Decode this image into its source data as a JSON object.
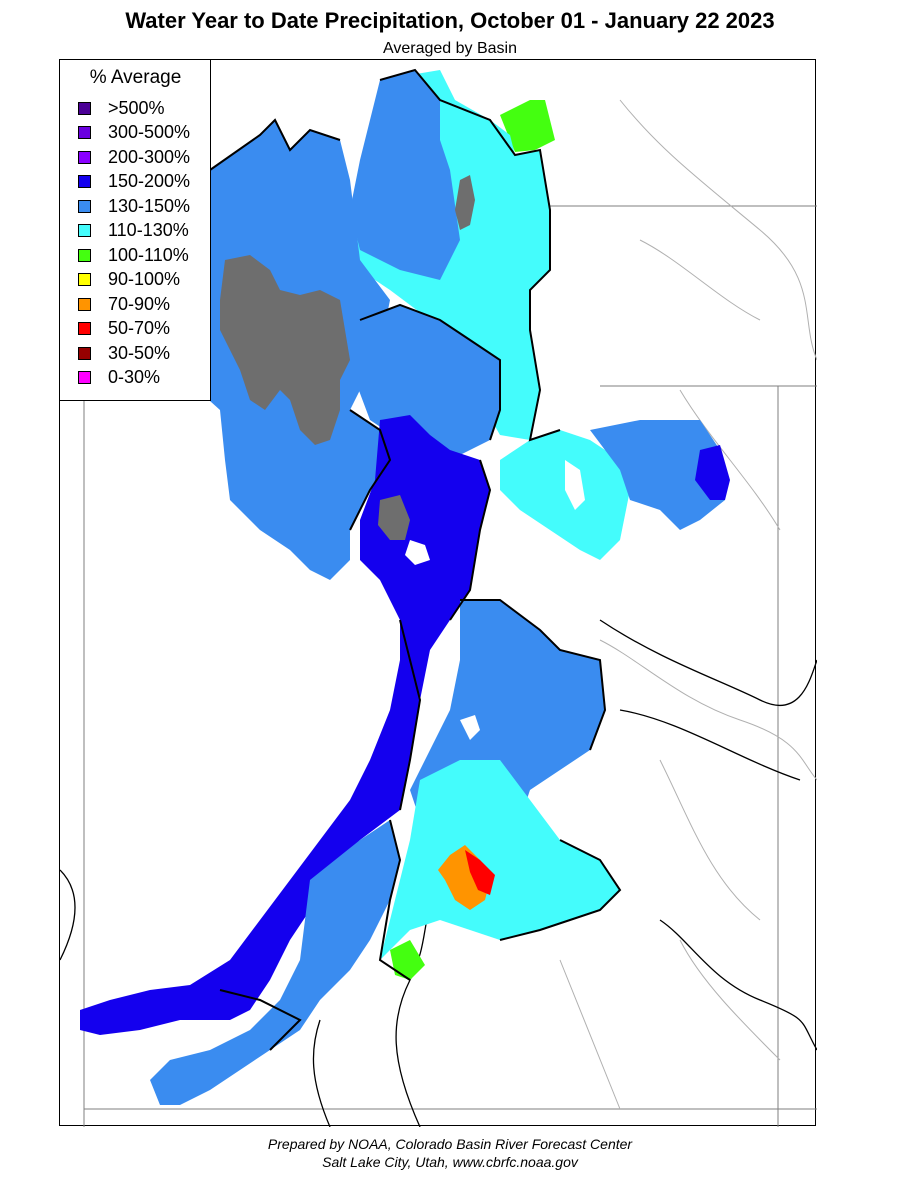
{
  "title": "Water Year to Date Precipitation, October 01  - January 22 2023",
  "subtitle": "Averaged by Basin",
  "legend": {
    "title": "% Average",
    "items": [
      {
        "label": ">500%",
        "color": "#4b0096"
      },
      {
        "label": "300-500%",
        "color": "#6a00e0"
      },
      {
        "label": "200-300%",
        "color": "#8a00ff"
      },
      {
        "label": "150-200%",
        "color": "#1400ee"
      },
      {
        "label": "130-150%",
        "color": "#3a8cf0"
      },
      {
        "label": "110-130%",
        "color": "#44fcfc"
      },
      {
        "label": "100-110%",
        "color": "#44ff10"
      },
      {
        "label": "90-100%",
        "color": "#ffff00"
      },
      {
        "label": "70-90%",
        "color": "#ff9400"
      },
      {
        "label": "50-70%",
        "color": "#ff0000"
      },
      {
        "label": "30-50%",
        "color": "#960000"
      },
      {
        "label": "0-30%",
        "color": "#ff00ff"
      }
    ]
  },
  "colors": {
    "no_data_gray": "#6e6e6e",
    "background": "#ffffff",
    "state_border": "#7f7f7f",
    "river_line": "#aaaaaa",
    "basin_border": "#000000"
  },
  "footer": {
    "line1": "Prepared by NOAA, Colorado Basin River Forecast Center",
    "line2": "Salt Lake City, Utah, www.cbrfc.noaa.gov"
  }
}
